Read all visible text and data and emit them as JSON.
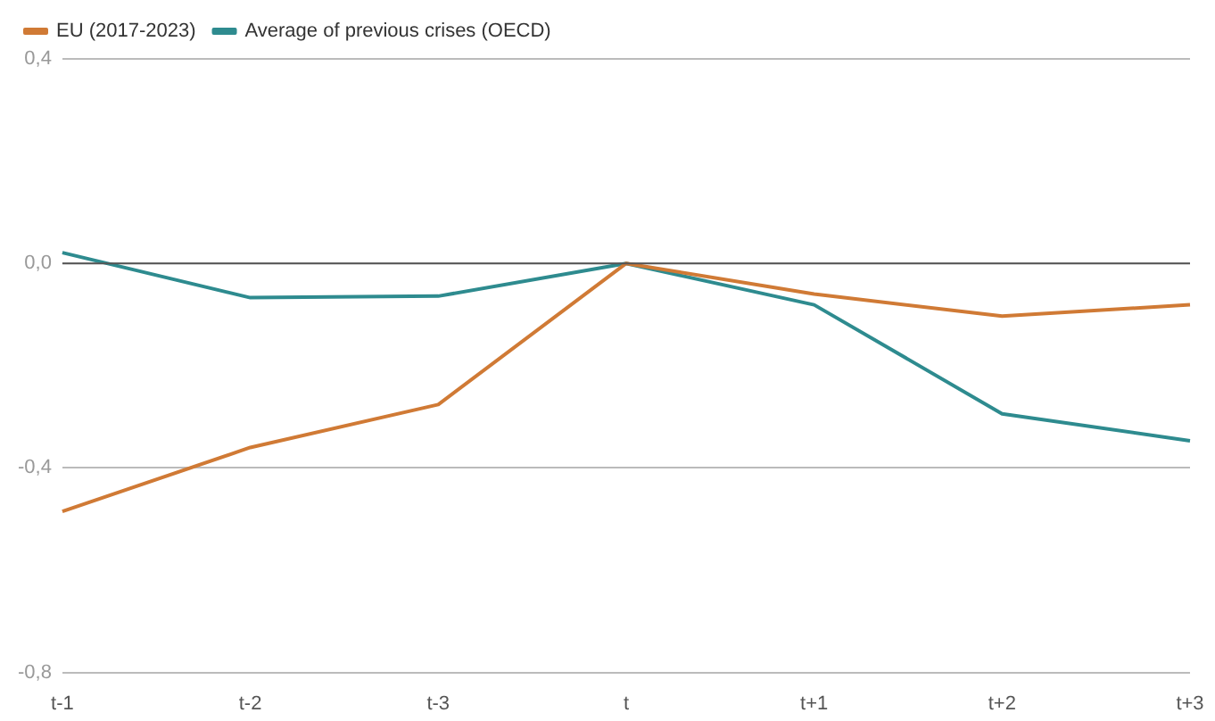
{
  "chart_data": {
    "type": "line",
    "categories": [
      "t-1",
      "t-2",
      "t-3",
      "t",
      "t+1",
      "t+2",
      "t+3"
    ],
    "series": [
      {
        "name": "EU (2017-2023)",
        "color": "#d07a35",
        "values": [
          -0.485,
          -0.36,
          -0.276,
          0,
          -0.06,
          -0.103,
          -0.081
        ]
      },
      {
        "name": "Average of previous crises (OECD)",
        "color": "#2e8b8f",
        "values": [
          0.021,
          -0.067,
          -0.064,
          0,
          -0.081,
          -0.294,
          -0.347
        ]
      }
    ],
    "ylim": [
      -0.8,
      0.4
    ],
    "yticks": [
      {
        "value": -0.8,
        "label": "-0,8"
      },
      {
        "value": -0.4,
        "label": "-0,4"
      },
      {
        "value": 0,
        "label": "0,0"
      },
      {
        "value": 0.4,
        "label": "0,4"
      }
    ],
    "ref_lines": [
      {
        "axis": "y",
        "value": 0,
        "color": "#555555"
      }
    ],
    "grid": "y",
    "legend": "top left",
    "marker": "none",
    "line_style": "solid"
  }
}
